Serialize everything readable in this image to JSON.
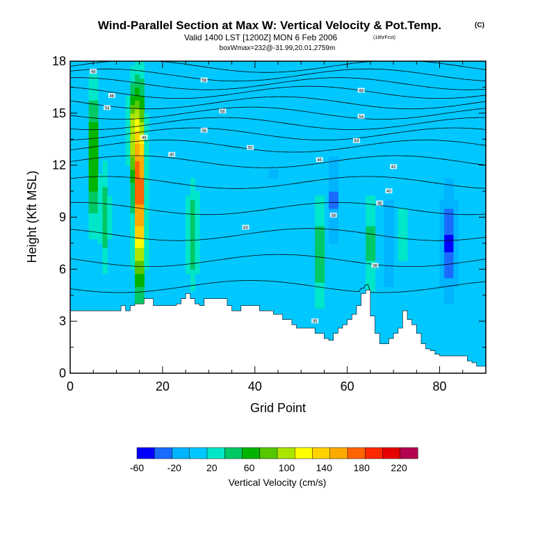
{
  "chart_data": {
    "type": "heatmap",
    "title": "Wind-Parallel Section at Max W: Vertical Velocity & Pot.Temp.",
    "title_mark": "(C)",
    "subtitle": "Valid 1400 LST [1200Z] MON 6 Feb 2006",
    "subtitle_note": "(18hrFcst)",
    "info_line": "boxWmax=232@-31.99,20.01,2759m",
    "xlabel": "Grid Point",
    "ylabel": "Height (Kft MSL)",
    "xlim": [
      0,
      90
    ],
    "ylim": [
      0,
      18
    ],
    "x_ticks": [
      "0",
      "20",
      "40",
      "60",
      "80"
    ],
    "x_tick_values": [
      0,
      20,
      40,
      60,
      80
    ],
    "y_ticks": [
      "0",
      "3",
      "6",
      "9",
      "12",
      "15",
      "18"
    ],
    "y_tick_values": [
      0,
      3,
      6,
      9,
      12,
      15,
      18
    ],
    "colorbar": {
      "title": "Vertical Velocity (cm/s)",
      "tick_labels": [
        "-60",
        "-20",
        "20",
        "60",
        "100",
        "140",
        "180",
        "220"
      ],
      "tick_values": [
        -60,
        -20,
        20,
        60,
        100,
        140,
        180,
        220
      ],
      "bins": [
        -60,
        -40,
        -20,
        0,
        20,
        40,
        60,
        80,
        100,
        120,
        140,
        160,
        180,
        200,
        220,
        240
      ],
      "colors": [
        "#0000ff",
        "#1a6bff",
        "#00b4ff",
        "#00c8ff",
        "#00e6c8",
        "#00c864",
        "#00b400",
        "#55c800",
        "#aae600",
        "#ffff00",
        "#ffd200",
        "#ffaa00",
        "#ff6400",
        "#ff2800",
        "#e60000",
        "#b40050"
      ]
    },
    "background_value": 5,
    "terrain_height_kft": [
      3.6,
      3.6,
      3.6,
      3.6,
      3.6,
      3.6,
      3.6,
      3.6,
      3.6,
      3.6,
      3.6,
      3.9,
      3.6,
      3.9,
      4.0,
      4.0,
      4.3,
      4.3,
      3.9,
      3.9,
      3.9,
      3.9,
      3.9,
      4.0,
      4.3,
      4.6,
      4.3,
      4.0,
      3.9,
      4.3,
      4.3,
      4.3,
      4.3,
      4.3,
      3.9,
      3.6,
      3.6,
      3.9,
      3.9,
      3.9,
      3.9,
      3.6,
      3.6,
      3.6,
      3.4,
      3.4,
      3.1,
      3.1,
      2.8,
      2.6,
      2.6,
      2.6,
      2.6,
      2.3,
      2.3,
      2.0,
      1.9,
      2.3,
      2.6,
      2.8,
      3.1,
      3.4,
      3.9,
      4.6,
      4.8,
      3.3,
      2.3,
      1.7,
      1.7,
      2.0,
      2.3,
      2.6,
      3.6,
      3.1,
      2.8,
      2.3,
      1.7,
      1.4,
      1.3,
      1.1,
      1.0,
      1.0,
      1.0,
      1.0,
      1.0,
      1.0,
      0.7,
      0.6,
      0.4,
      0.4
    ],
    "updrafts": [
      {
        "x": 5,
        "y": 12.5,
        "sx": 0.9,
        "sy": 3.8,
        "amp": 100
      },
      {
        "x": 7.5,
        "y": 9,
        "sx": 1.0,
        "sy": 3.0,
        "amp": 50
      },
      {
        "x": 15,
        "y": 10.5,
        "sx": 1.1,
        "sy": 5.0,
        "amp": 220
      },
      {
        "x": 13.5,
        "y": 14,
        "sx": 0.9,
        "sy": 2.5,
        "amp": 90
      },
      {
        "x": 26.5,
        "y": 8,
        "sx": 1.3,
        "sy": 2.8,
        "amp": 55
      },
      {
        "x": 54,
        "y": 7,
        "sx": 1.0,
        "sy": 3.0,
        "amp": 60
      },
      {
        "x": 65,
        "y": 7.5,
        "sx": 0.8,
        "sy": 2.8,
        "amp": 60
      },
      {
        "x": 72,
        "y": 8,
        "sx": 1.2,
        "sy": 2.5,
        "amp": 25
      },
      {
        "x": 30,
        "y": 13,
        "sx": 3.0,
        "sy": 1.5,
        "amp": 10
      },
      {
        "x": 66,
        "y": 16,
        "sx": 4.0,
        "sy": 1.2,
        "amp": 12
      },
      {
        "x": 86,
        "y": 3,
        "sx": 3.0,
        "sy": 1.5,
        "amp": 12
      },
      {
        "x": 49,
        "y": 5,
        "sx": 3.0,
        "sy": 1.0,
        "amp": 12
      }
    ],
    "downdrafts": [
      {
        "x": 57,
        "y": 10,
        "sx": 1.0,
        "sy": 2.0,
        "amp": -35
      },
      {
        "x": 82,
        "y": 7.5,
        "sx": 1.3,
        "sy": 2.5,
        "amp": -55
      },
      {
        "x": 69,
        "y": 7.5,
        "sx": 0.9,
        "sy": 2.0,
        "amp": -30
      },
      {
        "x": 33,
        "y": 12.2,
        "sx": 0.4,
        "sy": 0.5,
        "amp": -25
      },
      {
        "x": 44,
        "y": 11.5,
        "sx": 0.4,
        "sy": 0.8,
        "amp": -25
      }
    ],
    "theta_contours": {
      "levels_kft": [
        17.7,
        17.2,
        16.7,
        16.2,
        15.6,
        15.0,
        14.4,
        13.8,
        13.1,
        12.2,
        11.0,
        9.5,
        8.0,
        6.5,
        5.0
      ],
      "labels": [
        {
          "text": "48",
          "x": 5,
          "y": 17.4
        },
        {
          "text": "58",
          "x": 29,
          "y": 16.9
        },
        {
          "text": "46",
          "x": 9,
          "y": 16
        },
        {
          "text": "54",
          "x": 8,
          "y": 15.3
        },
        {
          "text": "56",
          "x": 33,
          "y": 15.1
        },
        {
          "text": "48",
          "x": 63,
          "y": 16.3
        },
        {
          "text": "54",
          "x": 63,
          "y": 14.8
        },
        {
          "text": "56",
          "x": 29,
          "y": 14
        },
        {
          "text": "49",
          "x": 16,
          "y": 13.6
        },
        {
          "text": "50",
          "x": 39,
          "y": 13.0
        },
        {
          "text": "40",
          "x": 22,
          "y": 12.6
        },
        {
          "text": "64",
          "x": 62,
          "y": 13.4
        },
        {
          "text": "45",
          "x": 54,
          "y": 12.3
        },
        {
          "text": "42",
          "x": 70,
          "y": 11.9
        },
        {
          "text": "40",
          "x": 69,
          "y": 10.5
        },
        {
          "text": "38",
          "x": 67,
          "y": 9.8
        },
        {
          "text": "38",
          "x": 57,
          "y": 9.1
        },
        {
          "text": "83",
          "x": 38,
          "y": 8.4
        },
        {
          "text": "36",
          "x": 66,
          "y": 6.2
        },
        {
          "text": "35",
          "x": 53,
          "y": 3.0
        }
      ]
    }
  }
}
